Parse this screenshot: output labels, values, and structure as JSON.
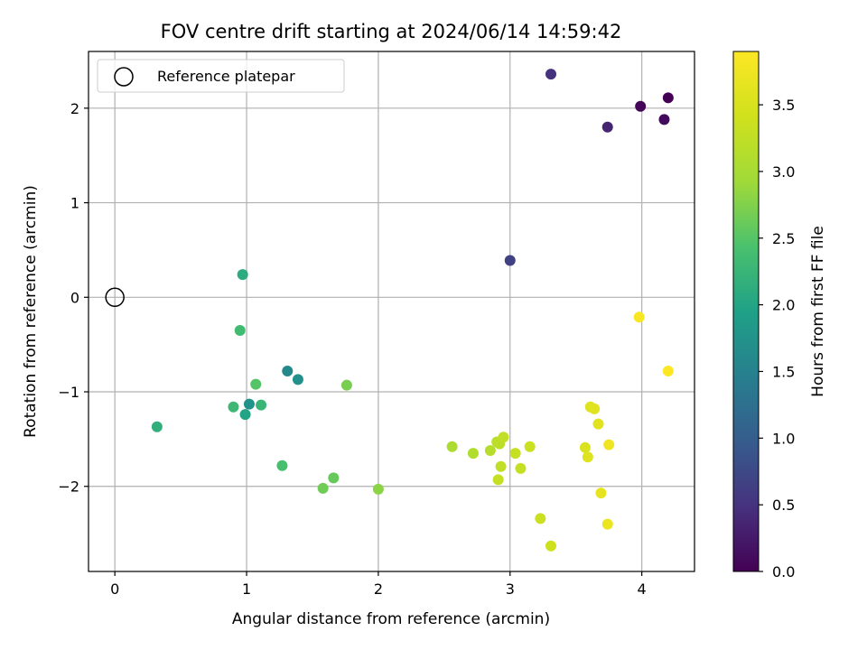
{
  "chart_data": {
    "type": "scatter",
    "title": "FOV centre drift starting at 2024/06/14 14:59:42",
    "xlabel": "Angular distance from reference (arcmin)",
    "ylabel": "Rotation from reference (arcmin)",
    "xlim": [
      -0.2,
      4.4
    ],
    "ylim": [
      -2.9,
      2.6
    ],
    "x_ticks": [
      0,
      1,
      2,
      3,
      4
    ],
    "x_tick_labels": [
      "0",
      "1",
      "2",
      "3",
      "4"
    ],
    "y_ticks": [
      -2,
      -1,
      0,
      1,
      2
    ],
    "y_tick_labels": [
      "−2",
      "−1",
      "0",
      "1",
      "2"
    ],
    "grid": true,
    "legend": {
      "position": "upper-left",
      "entries": [
        "Reference platepar"
      ]
    },
    "reference_point": {
      "x": 0,
      "y": 0,
      "label": "Reference platepar"
    },
    "colorbar": {
      "label": "Hours from first FF file",
      "colormap": "viridis",
      "range": [
        0,
        3.9
      ],
      "ticks": [
        0,
        0.5,
        1,
        1.5,
        2,
        2.5,
        3,
        3.5
      ],
      "tick_labels": [
        "0.0",
        "0.5",
        "1.0",
        "1.5",
        "2.0",
        "2.5",
        "3.0",
        "3.5"
      ]
    },
    "points": [
      {
        "x": 4.2,
        "y": 2.11,
        "c": 0.0
      },
      {
        "x": 3.99,
        "y": 2.02,
        "c": 0.05
      },
      {
        "x": 4.17,
        "y": 1.88,
        "c": 0.1
      },
      {
        "x": 3.74,
        "y": 1.8,
        "c": 0.35
      },
      {
        "x": 3.31,
        "y": 2.36,
        "c": 0.5
      },
      {
        "x": 3.0,
        "y": 0.39,
        "c": 0.65
      },
      {
        "x": 1.31,
        "y": -0.78,
        "c": 1.6
      },
      {
        "x": 1.39,
        "y": -0.87,
        "c": 1.7
      },
      {
        "x": 1.02,
        "y": -1.13,
        "c": 1.75
      },
      {
        "x": 0.99,
        "y": -1.24,
        "c": 2.0
      },
      {
        "x": 0.97,
        "y": 0.24,
        "c": 2.1
      },
      {
        "x": 0.32,
        "y": -1.37,
        "c": 2.15
      },
      {
        "x": 1.11,
        "y": -1.14,
        "c": 2.25
      },
      {
        "x": 0.9,
        "y": -1.16,
        "c": 2.3
      },
      {
        "x": 0.95,
        "y": -0.35,
        "c": 2.35
      },
      {
        "x": 1.27,
        "y": -1.78,
        "c": 2.4
      },
      {
        "x": 1.07,
        "y": -0.92,
        "c": 2.5
      },
      {
        "x": 1.66,
        "y": -1.91,
        "c": 2.6
      },
      {
        "x": 1.58,
        "y": -2.02,
        "c": 2.65
      },
      {
        "x": 1.76,
        "y": -0.93,
        "c": 2.7
      },
      {
        "x": 2.0,
        "y": -2.03,
        "c": 2.8
      },
      {
        "x": 2.56,
        "y": -1.58,
        "c": 3.05
      },
      {
        "x": 2.72,
        "y": -1.65,
        "c": 3.1
      },
      {
        "x": 2.85,
        "y": -1.62,
        "c": 3.15
      },
      {
        "x": 2.9,
        "y": -1.53,
        "c": 3.2
      },
      {
        "x": 2.92,
        "y": -1.55,
        "c": 3.2
      },
      {
        "x": 2.95,
        "y": -1.48,
        "c": 3.25
      },
      {
        "x": 2.93,
        "y": -1.79,
        "c": 3.25
      },
      {
        "x": 2.91,
        "y": -1.93,
        "c": 3.3
      },
      {
        "x": 3.04,
        "y": -1.65,
        "c": 3.3
      },
      {
        "x": 3.08,
        "y": -1.81,
        "c": 3.3
      },
      {
        "x": 3.15,
        "y": -1.58,
        "c": 3.35
      },
      {
        "x": 3.23,
        "y": -2.34,
        "c": 3.35
      },
      {
        "x": 3.31,
        "y": -2.63,
        "c": 3.4
      },
      {
        "x": 3.57,
        "y": -1.59,
        "c": 3.5
      },
      {
        "x": 3.59,
        "y": -1.69,
        "c": 3.55
      },
      {
        "x": 3.61,
        "y": -1.16,
        "c": 3.55
      },
      {
        "x": 3.64,
        "y": -1.18,
        "c": 3.6
      },
      {
        "x": 3.67,
        "y": -1.34,
        "c": 3.6
      },
      {
        "x": 3.69,
        "y": -2.07,
        "c": 3.65
      },
      {
        "x": 3.74,
        "y": -2.4,
        "c": 3.7
      },
      {
        "x": 3.75,
        "y": -1.56,
        "c": 3.75
      },
      {
        "x": 3.98,
        "y": -0.21,
        "c": 3.85
      },
      {
        "x": 4.2,
        "y": -0.78,
        "c": 3.9
      }
    ]
  }
}
